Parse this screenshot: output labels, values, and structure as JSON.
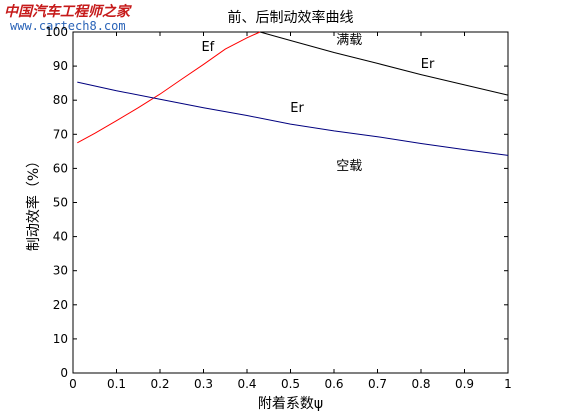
{
  "watermark": {
    "site_name": "中国汽车工程师之家",
    "url": "www.cartech8.com"
  },
  "chart_data": {
    "type": "line",
    "title": "前、后制动效率曲线",
    "xlabel": "附着系数ψ",
    "ylabel": "制动效率（%）",
    "xlim": [
      0,
      1
    ],
    "ylim": [
      0,
      100
    ],
    "xticks": [
      0,
      0.1,
      0.2,
      0.3,
      0.4,
      0.5,
      0.6,
      0.7,
      0.8,
      0.9,
      1
    ],
    "xtick_labels": [
      "0",
      "0.1",
      "0.2",
      "0.3",
      "0.4",
      "0.5",
      "0.6",
      "0.7",
      "0.8",
      "0.9",
      "1"
    ],
    "yticks": [
      0,
      10,
      20,
      30,
      40,
      50,
      60,
      70,
      80,
      90,
      100
    ],
    "ytick_labels": [
      "0",
      "10",
      "20",
      "30",
      "40",
      "50",
      "60",
      "70",
      "80",
      "90",
      "100"
    ],
    "grid": false,
    "series": [
      {
        "name": "Ef",
        "condition": "满载",
        "color": "#ff0000",
        "x": [
          0.01,
          0.05,
          0.1,
          0.15,
          0.2,
          0.25,
          0.3,
          0.35,
          0.4,
          0.43
        ],
        "y": [
          67.5,
          70.3,
          74.0,
          77.8,
          81.8,
          86.2,
          90.5,
          95.0,
          98.3,
          100
        ]
      },
      {
        "name": "Er",
        "condition": "满载",
        "color": "#000000",
        "x": [
          0.43,
          0.5,
          0.6,
          0.7,
          0.8,
          0.9,
          1.0
        ],
        "y": [
          100,
          97.5,
          94.0,
          90.8,
          87.5,
          84.5,
          81.5
        ]
      },
      {
        "name": "Er",
        "condition": "空载",
        "color": "#00007f",
        "x": [
          0.01,
          0.1,
          0.2,
          0.3,
          0.4,
          0.5,
          0.6,
          0.7,
          0.8,
          0.9,
          1.0
        ],
        "y": [
          85.3,
          82.8,
          80.3,
          77.8,
          75.5,
          73.0,
          71.0,
          69.3,
          67.3,
          65.5,
          63.8
        ]
      }
    ],
    "annotations": [
      {
        "text": "Ef",
        "x": 0.31,
        "y": 94.5
      },
      {
        "text": "满载",
        "x": 0.635,
        "y": 96.5
      },
      {
        "text": "Er",
        "x": 0.815,
        "y": 89.5
      },
      {
        "text": "Er",
        "x": 0.515,
        "y": 76.5
      },
      {
        "text": "空载",
        "x": 0.635,
        "y": 59.5
      }
    ]
  }
}
